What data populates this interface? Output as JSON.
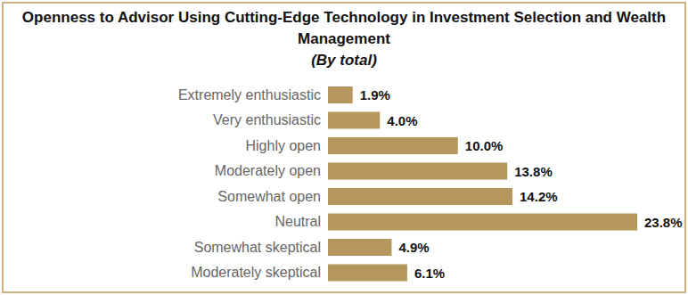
{
  "chart_data": {
    "type": "bar",
    "title": "Openness to Advisor Using Cutting-Edge Technology in Investment Selection and Wealth Management",
    "subtitle": "(By total)",
    "orientation": "horizontal",
    "categories": [
      "Extremely enthusiastic",
      "Very enthusiastic",
      "Highly open",
      "Moderately open",
      "Somewhat open",
      "Neutral",
      "Somewhat skeptical",
      "Moderately skeptical"
    ],
    "values": [
      1.9,
      4.0,
      10.0,
      13.8,
      14.2,
      23.8,
      4.9,
      6.1
    ],
    "value_labels": [
      "1.9%",
      "4.0%",
      "10.0%",
      "13.8%",
      "14.2%",
      "23.8%",
      "4.9%",
      "6.1%"
    ],
    "color": "#b5965d",
    "data_labels": true,
    "tick_labels": "y",
    "grid": false
  }
}
